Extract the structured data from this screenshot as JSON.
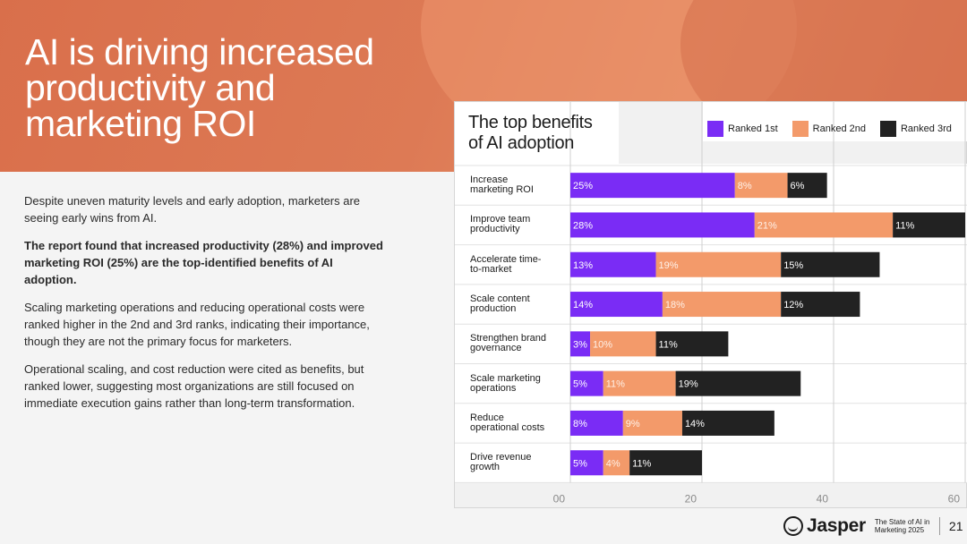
{
  "hero": {
    "title_lines": [
      "AI is driving increased",
      "productivity and",
      "marketing ROI"
    ]
  },
  "body": {
    "paragraphs": [
      "Despite uneven maturity levels and early adoption, marketers are seeing early wins from AI.",
      "The report found that increased productivity (28%) and improved marketing ROI (25%) are the top-identified benefits of AI adoption.",
      "Scaling marketing operations and reducing operational costs were ranked higher in the 2nd and 3rd ranks, indicating their importance, though they are not the primary focus for marketers.",
      "Operational scaling, and cost reduction were cited as benefits, but ranked lower, suggesting most organizations are still focused on immediate execution gains rather than long-term transformation."
    ]
  },
  "colors": {
    "accent": "#dd7a55",
    "ranked_1st": "#7a2cf5",
    "ranked_2nd": "#f39a6a",
    "ranked_3rd": "#222222",
    "label_on_orange": "#fff1e8"
  },
  "chart_data": {
    "type": "bar",
    "orientation": "horizontal",
    "stacked": true,
    "title": "The top benefits of AI adoption",
    "title_lines": [
      "The top benefits",
      "of AI adoption"
    ],
    "categories": [
      [
        "Increase",
        "marketing ROI"
      ],
      [
        "Improve team",
        "productivity"
      ],
      [
        "Accelerate time-",
        "to-market"
      ],
      [
        "Scale content",
        "production"
      ],
      [
        "Strengthen brand",
        "governance"
      ],
      [
        "Scale marketing",
        "operations"
      ],
      [
        "Reduce",
        "operational costs"
      ],
      [
        "Drive revenue",
        "growth"
      ]
    ],
    "series": [
      {
        "name": "Ranked 1st",
        "values": [
          25,
          28,
          13,
          14,
          3,
          5,
          8,
          5
        ]
      },
      {
        "name": "Ranked 2nd",
        "values": [
          8,
          21,
          19,
          18,
          10,
          11,
          9,
          4
        ]
      },
      {
        "name": "Ranked 3rd",
        "values": [
          6,
          11,
          15,
          12,
          11,
          19,
          14,
          11
        ]
      }
    ],
    "data_labels": [
      [
        "25%",
        "8%",
        "6%"
      ],
      [
        "28%",
        "21%",
        "11%"
      ],
      [
        "13%",
        "19%",
        "15%"
      ],
      [
        "14%",
        "18%",
        "12%"
      ],
      [
        "3%",
        "10%",
        "11%"
      ],
      [
        "5%",
        "11%",
        "19%"
      ],
      [
        "8%",
        "9%",
        "14%"
      ],
      [
        "5%",
        "4%",
        "11%"
      ]
    ],
    "xlim": [
      0,
      60
    ],
    "ticks": [
      0,
      20,
      40,
      60
    ],
    "tick_labels": [
      "00",
      "20",
      "40",
      "60"
    ],
    "legend_position": "top-right",
    "grid": true
  },
  "footer": {
    "brand": "Jasper",
    "report_lines": [
      "The State of AI in",
      "Marketing 2025"
    ],
    "page_number": "21"
  }
}
